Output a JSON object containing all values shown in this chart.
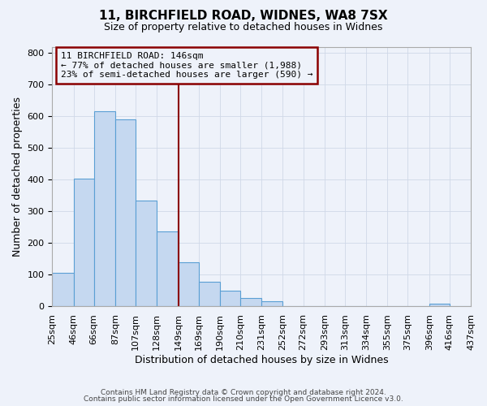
{
  "title": "11, BIRCHFIELD ROAD, WIDNES, WA8 7SX",
  "subtitle": "Size of property relative to detached houses in Widnes",
  "xlabel": "Distribution of detached houses by size in Widnes",
  "ylabel": "Number of detached properties",
  "bar_left_edges": [
    25,
    46,
    66,
    87,
    107,
    128,
    149,
    169,
    190,
    210,
    231,
    252,
    272,
    293,
    313,
    334,
    355,
    375,
    396,
    416
  ],
  "bar_widths": [
    21,
    20,
    21,
    20,
    21,
    21,
    20,
    21,
    20,
    21,
    21,
    20,
    21,
    20,
    21,
    21,
    20,
    21,
    20,
    21
  ],
  "bar_heights": [
    105,
    403,
    615,
    590,
    333,
    235,
    137,
    76,
    48,
    25,
    15,
    0,
    0,
    0,
    0,
    0,
    0,
    0,
    7,
    0
  ],
  "bar_color": "#c5d8f0",
  "bar_edge_color": "#5a9fd4",
  "x_tick_labels": [
    "25sqm",
    "46sqm",
    "66sqm",
    "87sqm",
    "107sqm",
    "128sqm",
    "149sqm",
    "169sqm",
    "190sqm",
    "210sqm",
    "231sqm",
    "252sqm",
    "272sqm",
    "293sqm",
    "313sqm",
    "334sqm",
    "355sqm",
    "375sqm",
    "396sqm",
    "416sqm",
    "437sqm"
  ],
  "ylim": [
    0,
    820
  ],
  "yticks": [
    0,
    100,
    200,
    300,
    400,
    500,
    600,
    700,
    800
  ],
  "property_line_x": 149,
  "property_line_color": "#8b0000",
  "annotation_text": "11 BIRCHFIELD ROAD: 146sqm\n← 77% of detached houses are smaller (1,988)\n23% of semi-detached houses are larger (590) →",
  "annotation_box_color": "#8b0000",
  "grid_color": "#d0d8e8",
  "background_color": "#eef2fa",
  "footer_line1": "Contains HM Land Registry data © Crown copyright and database right 2024.",
  "footer_line2": "Contains public sector information licensed under the Open Government Licence v3.0."
}
